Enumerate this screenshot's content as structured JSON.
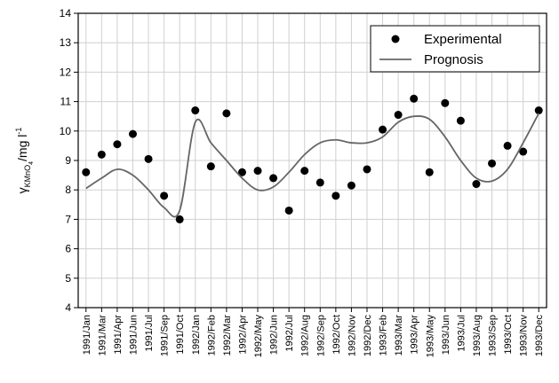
{
  "chart_data": {
    "type": "line",
    "y_label": {
      "symbol": "γ",
      "subscript": "KMnO",
      "sub_subscript": "4",
      "unit": "/mg l",
      "superscript": "-1"
    },
    "categories": [
      "1991/Jan",
      "1991/Mar",
      "1991/Apr",
      "1991/Jun",
      "1991/Jul",
      "1991/Sep",
      "1991/Oct",
      "1992/Jan",
      "1992/Feb",
      "1992/Mar",
      "1992/Apr",
      "1992/May",
      "1992/Jun",
      "1992/Jul",
      "1992/Aug",
      "1992/Sep",
      "1992/Oct",
      "1992/Nov",
      "1992/Dec",
      "1993/Feb",
      "1993/Mar",
      "1993/Apr",
      "1993/May",
      "1993/Jun",
      "1993/Jul",
      "1993/Aug",
      "1993/Sep",
      "1993/Oct",
      "1993/Nov",
      "1993/Dec"
    ],
    "series": [
      {
        "name": "Experimental",
        "color": "#000000",
        "style": "markers",
        "values": [
          8.6,
          9.2,
          9.55,
          9.9,
          9.05,
          7.8,
          7.0,
          10.7,
          8.8,
          10.6,
          8.6,
          8.65,
          8.4,
          7.3,
          8.65,
          8.25,
          7.8,
          8.15,
          8.7,
          10.05,
          10.55,
          11.1,
          8.6,
          10.95,
          10.35,
          8.2,
          8.9,
          9.5,
          9.3,
          10.7
        ]
      },
      {
        "name": "Prognosis",
        "color": "#666666",
        "style": "line",
        "values": [
          8.05,
          8.4,
          8.7,
          8.5,
          8.0,
          7.4,
          7.3,
          10.3,
          9.6,
          9.0,
          8.4,
          8.0,
          8.1,
          8.6,
          9.2,
          9.6,
          9.7,
          9.6,
          9.6,
          9.8,
          10.3,
          10.5,
          10.4,
          9.8,
          9.0,
          8.4,
          8.3,
          8.7,
          9.6,
          10.6
        ]
      }
    ],
    "ylim": [
      4,
      14
    ],
    "yticks": [
      4,
      5,
      6,
      7,
      8,
      9,
      10,
      11,
      12,
      13,
      14
    ],
    "grid": true,
    "legend": "top-right"
  }
}
